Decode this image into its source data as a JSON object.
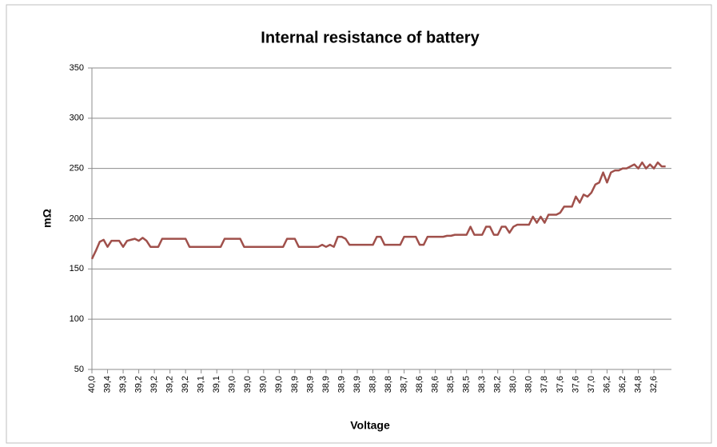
{
  "chart_data": {
    "type": "line",
    "title": "Internal resistance of battery",
    "x_label": "Voltage",
    "y_label": "mΩ",
    "categories": [
      "40,0",
      null,
      null,
      null,
      "39,4",
      null,
      null,
      null,
      "39,3",
      null,
      null,
      null,
      "39,2",
      null,
      null,
      null,
      "39,2",
      null,
      null,
      null,
      "39,2",
      null,
      null,
      null,
      "39,2",
      null,
      null,
      null,
      "39,1",
      null,
      null,
      null,
      "39,1",
      null,
      null,
      null,
      "39,0",
      null,
      null,
      null,
      "39,0",
      null,
      null,
      null,
      "39,0",
      null,
      null,
      null,
      "39,0",
      null,
      null,
      null,
      "38,9",
      null,
      null,
      null,
      "38,9",
      null,
      null,
      null,
      "38,9",
      null,
      null,
      null,
      "38,9",
      null,
      null,
      null,
      "38,9",
      null,
      null,
      null,
      "38,8",
      null,
      null,
      null,
      "38,8",
      null,
      null,
      null,
      "38,7",
      null,
      null,
      null,
      "38,6",
      null,
      null,
      null,
      "38,6",
      null,
      null,
      null,
      "38,5",
      null,
      null,
      null,
      "38,5",
      null,
      null,
      null,
      "38,3",
      null,
      null,
      null,
      "38,2",
      null,
      null,
      null,
      "38,0",
      null,
      null,
      null,
      "38,0",
      null,
      null,
      null,
      "37,8",
      null,
      null,
      null,
      "37,6",
      null,
      null,
      null,
      "37,6",
      null,
      null,
      null,
      "37,0",
      null,
      null,
      null,
      "36,2",
      null,
      null,
      null,
      "36,2",
      null,
      null,
      null,
      "34,8",
      null,
      null,
      null,
      "32,6",
      null,
      null,
      null
    ],
    "series": [
      {
        "name": "mΩ",
        "color": "#a0504b",
        "values": [
          160,
          168,
          177,
          179,
          172,
          178,
          178,
          178,
          172,
          178,
          179,
          180,
          178,
          181,
          178,
          172,
          172,
          172,
          180,
          180,
          180,
          180,
          180,
          180,
          180,
          172,
          172,
          172,
          172,
          172,
          172,
          172,
          172,
          172,
          180,
          180,
          180,
          180,
          180,
          172,
          172,
          172,
          172,
          172,
          172,
          172,
          172,
          172,
          172,
          172,
          180,
          180,
          180,
          172,
          172,
          172,
          172,
          172,
          172,
          174,
          172,
          174,
          172,
          182,
          182,
          180,
          174,
          174,
          174,
          174,
          174,
          174,
          174,
          182,
          182,
          174,
          174,
          174,
          174,
          174,
          182,
          182,
          182,
          182,
          174,
          174,
          182,
          182,
          182,
          182,
          182,
          183,
          183,
          184,
          184,
          184,
          184,
          192,
          184,
          184,
          184,
          192,
          192,
          184,
          184,
          192,
          192,
          186,
          192,
          194,
          194,
          194,
          194,
          202,
          196,
          202,
          196,
          204,
          204,
          204,
          206,
          212,
          212,
          212,
          222,
          216,
          224,
          222,
          226,
          234,
          236,
          246,
          236,
          246,
          248,
          248,
          250,
          250,
          252,
          254,
          250,
          256,
          250,
          254,
          250,
          256,
          252,
          252
        ]
      }
    ],
    "ylim": [
      50,
      350
    ],
    "yticks": [
      50,
      100,
      150,
      200,
      250,
      300,
      350
    ],
    "grid": true
  }
}
